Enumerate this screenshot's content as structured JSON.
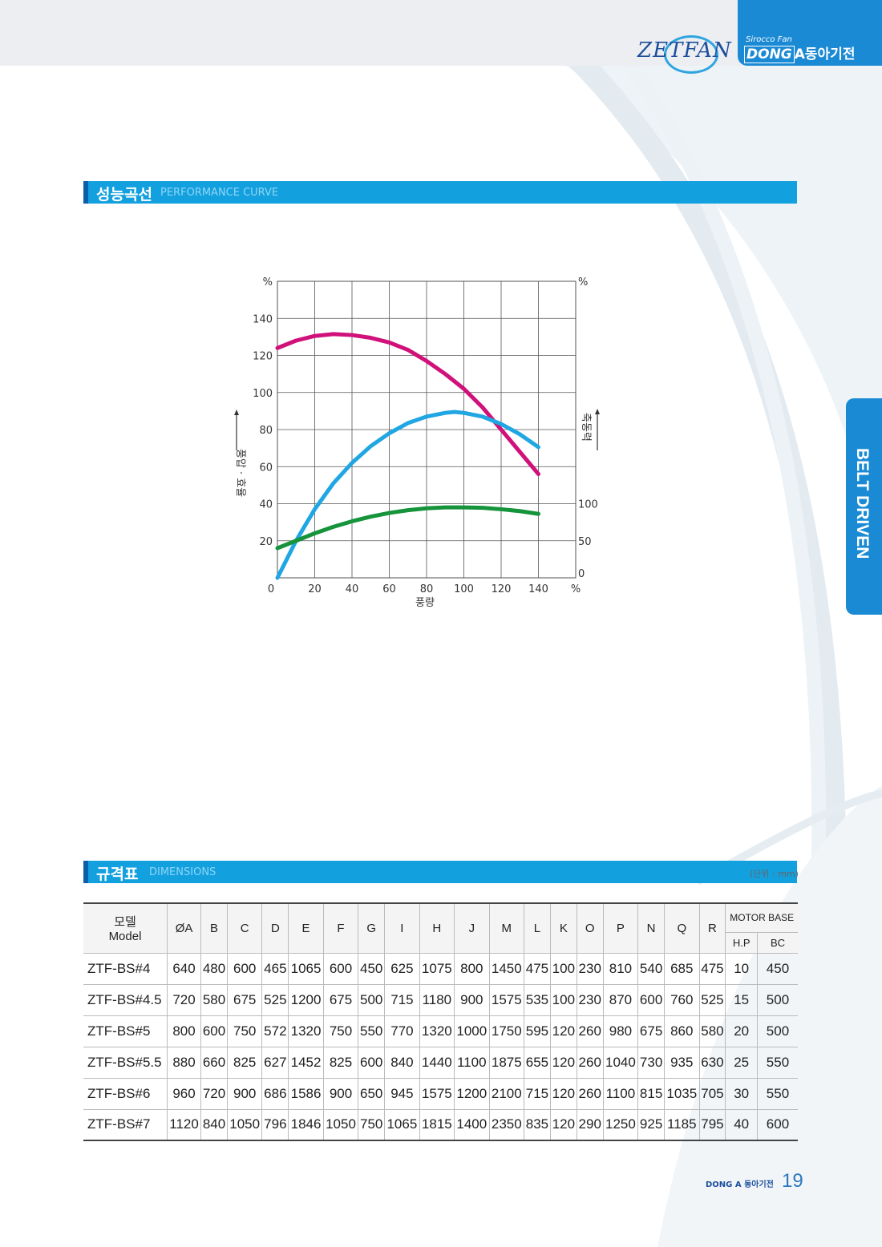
{
  "header": {
    "logo_text": "ZETFAN",
    "brand_small": "Sirocco Fan",
    "brand_dong": "DONG",
    "brand_a": "A",
    "brand_company": "동아기전"
  },
  "side_tab": "BELT DRIVEN",
  "perf_section": {
    "title_ko": "성능곡선",
    "title_en": "PERFORMANCE CURVE"
  },
  "dims_section": {
    "title_ko": "규격표",
    "title_en": "DIMENSIONS",
    "unit": "(단위 : mm)"
  },
  "chart_data": {
    "type": "line",
    "x_label": "풍량",
    "left_label": "풍압 · 효율",
    "right_label": "축동력",
    "x_ticks": [
      "0",
      "20",
      "40",
      "60",
      "80",
      "100",
      "120",
      "140",
      "%"
    ],
    "left_ticks": [
      "%",
      "140",
      "120",
      "100",
      "80",
      "60",
      "40",
      "20"
    ],
    "right_ticks": [
      "%",
      "100",
      "50",
      "0"
    ],
    "xlim": [
      0,
      160
    ],
    "ylim": [
      0,
      160
    ],
    "grid": true,
    "colors": [
      "#d0117a",
      "#20a6e2",
      "#16943b"
    ],
    "series": [
      {
        "x": [
          0,
          10,
          20,
          30,
          40,
          50,
          60,
          70,
          80,
          90,
          100,
          110,
          120,
          130,
          140
        ],
        "values": [
          124,
          128,
          130.5,
          131.5,
          131,
          129.5,
          127,
          123,
          117,
          110,
          102,
          92,
          80,
          68,
          56
        ]
      },
      {
        "x": [
          0,
          10,
          20,
          30,
          40,
          50,
          60,
          70,
          80,
          90,
          95,
          100,
          110,
          120,
          130,
          140
        ],
        "values": [
          0,
          20,
          37,
          51,
          62,
          71,
          78,
          83.5,
          87,
          89,
          89.5,
          89,
          87,
          83,
          77.5,
          70.5
        ]
      },
      {
        "x": [
          0,
          10,
          20,
          30,
          40,
          50,
          60,
          70,
          80,
          90,
          100,
          110,
          120,
          130,
          140
        ],
        "values": [
          16,
          20,
          24,
          27.5,
          30.5,
          33,
          35,
          36.5,
          37.5,
          38,
          38,
          37.8,
          37,
          36,
          34.5
        ]
      }
    ]
  },
  "table": {
    "model_header_ko": "모델",
    "model_header_en": "Model",
    "columns": [
      "ØA",
      "B",
      "C",
      "D",
      "E",
      "F",
      "G",
      "I",
      "H",
      "J",
      "M",
      "L",
      "K",
      "O",
      "P",
      "N",
      "Q",
      "R"
    ],
    "motor_base": "MOTOR BASE",
    "motor_sub": [
      "H.P",
      "BC"
    ],
    "rows": [
      [
        "ZTF-BS#4",
        "640",
        "480",
        "600",
        "465",
        "1065",
        "600",
        "450",
        "625",
        "1075",
        "800",
        "1450",
        "475",
        "100",
        "230",
        "810",
        "540",
        "685",
        "475",
        "10",
        "450"
      ],
      [
        "ZTF-BS#4.5",
        "720",
        "580",
        "675",
        "525",
        "1200",
        "675",
        "500",
        "715",
        "1180",
        "900",
        "1575",
        "535",
        "100",
        "230",
        "870",
        "600",
        "760",
        "525",
        "15",
        "500"
      ],
      [
        "ZTF-BS#5",
        "800",
        "600",
        "750",
        "572",
        "1320",
        "750",
        "550",
        "770",
        "1320",
        "1000",
        "1750",
        "595",
        "120",
        "260",
        "980",
        "675",
        "860",
        "580",
        "20",
        "500"
      ],
      [
        "ZTF-BS#5.5",
        "880",
        "660",
        "825",
        "627",
        "1452",
        "825",
        "600",
        "840",
        "1440",
        "1100",
        "1875",
        "655",
        "120",
        "260",
        "1040",
        "730",
        "935",
        "630",
        "25",
        "550"
      ],
      [
        "ZTF-BS#6",
        "960",
        "720",
        "900",
        "686",
        "1586",
        "900",
        "650",
        "945",
        "1575",
        "1200",
        "2100",
        "715",
        "120",
        "260",
        "1100",
        "815",
        "1035",
        "705",
        "30",
        "550"
      ],
      [
        "ZTF-BS#7",
        "1120",
        "840",
        "1050",
        "796",
        "1846",
        "1050",
        "750",
        "1065",
        "1815",
        "1400",
        "2350",
        "835",
        "120",
        "290",
        "1250",
        "925",
        "1185",
        "795",
        "40",
        "600"
      ]
    ]
  },
  "footer": {
    "mini_brand": "DONG A 동아기전",
    "page": "19"
  }
}
